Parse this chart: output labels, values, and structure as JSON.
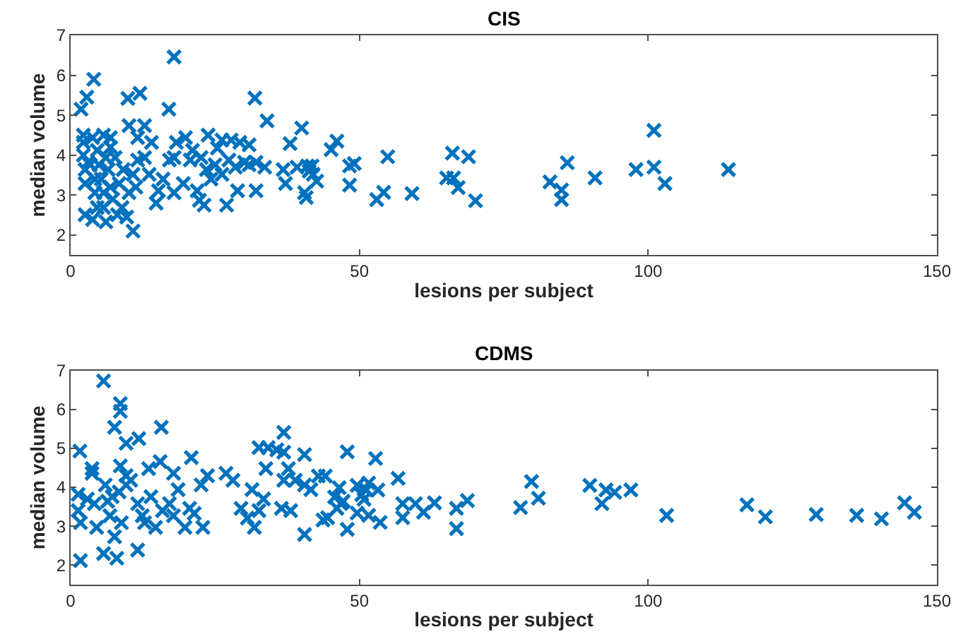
{
  "chart_data": [
    {
      "type": "scatter",
      "title": "CIS",
      "xlabel": "lesions per subject",
      "ylabel": "median volume",
      "xlim": [
        0,
        150
      ],
      "xticks": [
        0,
        50,
        100,
        150
      ],
      "ylim": [
        1.5,
        7
      ],
      "yticks": [
        2,
        3,
        4,
        5,
        6,
        7
      ],
      "marker": "cross",
      "series": [
        {
          "color": "#0072bd",
          "x": [
            40.0,
            45.1,
            46.1,
            48.3,
            49.1,
            48.3,
            54.9,
            53.0,
            54.2,
            59.1,
            66.1,
            65.1,
            66.3,
            67.1,
            68.9,
            70.1,
            83.0,
            85.0,
            85.0,
            86.0,
            90.8,
            97.9,
            101.0,
            101.0,
            102.9,
            113.9,
            41.0,
            41.8,
            41.3,
            42.0,
            42.6,
            40.5,
            40.8,
            17.9,
            4.0,
            2.8,
            1.8,
            9.9,
            12.0,
            17.0,
            31.9,
            34.0,
            2.2,
            3.8,
            5.7,
            6.9,
            10.1,
            12.8,
            11.6,
            14.0,
            18.3,
            19.9,
            23.8,
            26.2,
            27.8,
            29.3,
            30.9,
            38.0,
            2.2,
            2.5,
            2.5,
            2.5,
            3.8,
            4.6,
            3.4,
            4.6,
            5.3,
            5.7,
            6.1,
            6.5,
            6.9,
            7.3,
            7.7,
            8.1,
            8.9,
            9.7,
            10.8,
            10.1,
            11.3,
            11.6,
            10.8,
            12.8,
            13.6,
            14.8,
            15.2,
            16.0,
            17.1,
            17.9,
            17.9,
            19.5,
            20.7,
            21.1,
            21.9,
            22.3,
            23.1,
            22.6,
            23.5,
            24.3,
            25.0,
            25.4,
            26.2,
            27.0,
            27.4,
            28.5,
            28.9,
            30.1,
            30.9,
            32.1,
            32.1,
            33.6,
            36.8,
            37.2,
            39.2,
            2.2,
            3.0,
            4.2,
            4.9,
            5.7,
            4.2,
            6.1,
            6.9,
            8.4,
            9.1
          ],
          "values": [
            4.68,
            4.14,
            4.35,
            3.73,
            3.79,
            3.25,
            3.96,
            2.89,
            3.07,
            3.04,
            4.05,
            3.43,
            3.43,
            3.19,
            3.96,
            2.86,
            3.33,
            3.13,
            2.89,
            3.81,
            3.43,
            3.64,
            4.62,
            3.7,
            3.29,
            3.64,
            3.73,
            3.73,
            3.6,
            3.52,
            3.35,
            3.06,
            2.94,
            6.46,
            5.9,
            5.45,
            5.15,
            5.42,
            5.55,
            5.15,
            5.43,
            4.86,
            4.5,
            4.44,
            4.5,
            4.44,
            4.74,
            4.74,
            4.44,
            4.32,
            4.32,
            4.44,
            4.5,
            4.38,
            4.38,
            4.32,
            4.26,
            4.29,
            4.0,
            3.64,
            3.29,
            2.51,
            2.39,
            2.69,
            3.76,
            4.12,
            3.4,
            3.06,
            3.94,
            3.64,
            3.2,
            2.9,
            3.94,
            2.51,
            2.69,
            2.45,
            2.1,
            3.06,
            3.2,
            3.88,
            3.52,
            3.94,
            3.52,
            2.8,
            3.11,
            3.4,
            3.88,
            3.94,
            3.06,
            3.29,
            3.88,
            4.12,
            3.11,
            2.87,
            2.75,
            3.94,
            3.64,
            3.4,
            3.76,
            4.18,
            3.52,
            2.75,
            3.88,
            3.7,
            3.11,
            3.82,
            3.76,
            3.11,
            3.82,
            3.7,
            3.64,
            3.29,
            3.7,
            4.32,
            3.82,
            3.4,
            3.76,
            2.69,
            3.06,
            2.33,
            4.2,
            3.29,
            3.64
          ]
        }
      ]
    },
    {
      "type": "scatter",
      "title": "CDMS",
      "xlabel": "lesions per subject",
      "ylabel": "median volume",
      "xlim": [
        0,
        150
      ],
      "xticks": [
        0,
        50,
        100,
        150
      ],
      "ylim": [
        1.5,
        7
      ],
      "yticks": [
        2,
        3,
        4,
        5,
        6,
        7
      ],
      "marker": "cross",
      "series": [
        {
          "color": "#0072bd",
          "x": [
            5.7,
            8.6,
            8.6,
            7.6,
            9.6,
            11.8,
            15.7,
            1.6,
            3.7,
            3.7,
            8.6,
            9.6,
            13.5,
            15.5,
            17.8,
            20.9,
            22.6,
            23.7,
            26.9,
            28.1,
            1.3,
            1.3,
            1.7,
            1.7,
            2.9,
            4.1,
            4.5,
            5.7,
            6.0,
            6.4,
            6.8,
            7.2,
            7.6,
            8.0,
            8.4,
            8.8,
            9.6,
            10.4,
            11.6,
            11.6,
            12.4,
            12.8,
            13.9,
            14.7,
            15.9,
            17.1,
            17.8,
            18.6,
            19.8,
            20.6,
            21.4,
            22.9,
            29.5,
            30.6,
            31.4,
            31.8,
            32.6,
            33.4,
            32.6,
            34.2,
            36.9,
            35.7,
            36.9,
            33.8,
            37.7,
            36.5,
            38.1,
            36.9,
            38.9,
            40.5,
            40.5,
            40.5,
            41.6,
            42.9,
            44.1,
            43.7,
            44.5,
            45.7,
            46.5,
            46.8,
            46.1,
            47.2,
            47.9,
            47.9,
            49.6,
            50.4,
            50.8,
            51.6,
            51.6,
            52.8,
            53.2,
            53.6,
            49.6,
            51.2,
            56.7,
            57.5,
            57.5,
            59.7,
            61.1,
            63.0,
            66.8,
            66.8,
            68.7,
            77.9,
            79.8,
            81.0,
            89.9,
            92.0,
            92.7,
            94.2,
            97.0,
            103.2,
            117.1,
            120.3,
            129.1,
            136.1,
            140.4,
            144.4,
            146.1
          ],
          "values": [
            6.73,
            6.15,
            5.95,
            5.54,
            5.13,
            5.25,
            5.54,
            4.93,
            4.48,
            4.36,
            4.55,
            4.3,
            4.48,
            4.66,
            4.36,
            4.76,
            4.06,
            4.3,
            4.36,
            4.18,
            3.82,
            3.4,
            3.09,
            2.12,
            3.7,
            3.58,
            2.97,
            2.3,
            4.06,
            3.64,
            3.27,
            3.76,
            2.73,
            2.18,
            3.88,
            3.09,
            4.06,
            4.18,
            3.58,
            2.39,
            3.27,
            3.09,
            3.76,
            2.97,
            3.4,
            3.58,
            3.27,
            3.94,
            2.97,
            3.46,
            3.33,
            2.97,
            3.46,
            3.21,
            3.94,
            2.97,
            3.4,
            3.7,
            5.02,
            5.02,
            5.41,
            4.96,
            4.9,
            4.48,
            4.48,
            3.46,
            3.4,
            4.18,
            4.18,
            4.84,
            2.79,
            4.06,
            3.94,
            4.29,
            4.29,
            3.16,
            3.22,
            3.75,
            3.99,
            3.58,
            3.46,
            3.64,
            4.91,
            2.92,
            4.05,
            3.81,
            3.69,
            4.11,
            3.28,
            4.74,
            3.93,
            3.1,
            3.34,
            3.93,
            4.23,
            3.58,
            3.22,
            3.58,
            3.36,
            3.6,
            3.46,
            2.94,
            3.66,
            3.48,
            4.15,
            3.72,
            4.05,
            3.58,
            3.93,
            3.87,
            3.93,
            3.28,
            3.55,
            3.24,
            3.3,
            3.28,
            3.19,
            3.6,
            3.36
          ]
        }
      ]
    }
  ]
}
